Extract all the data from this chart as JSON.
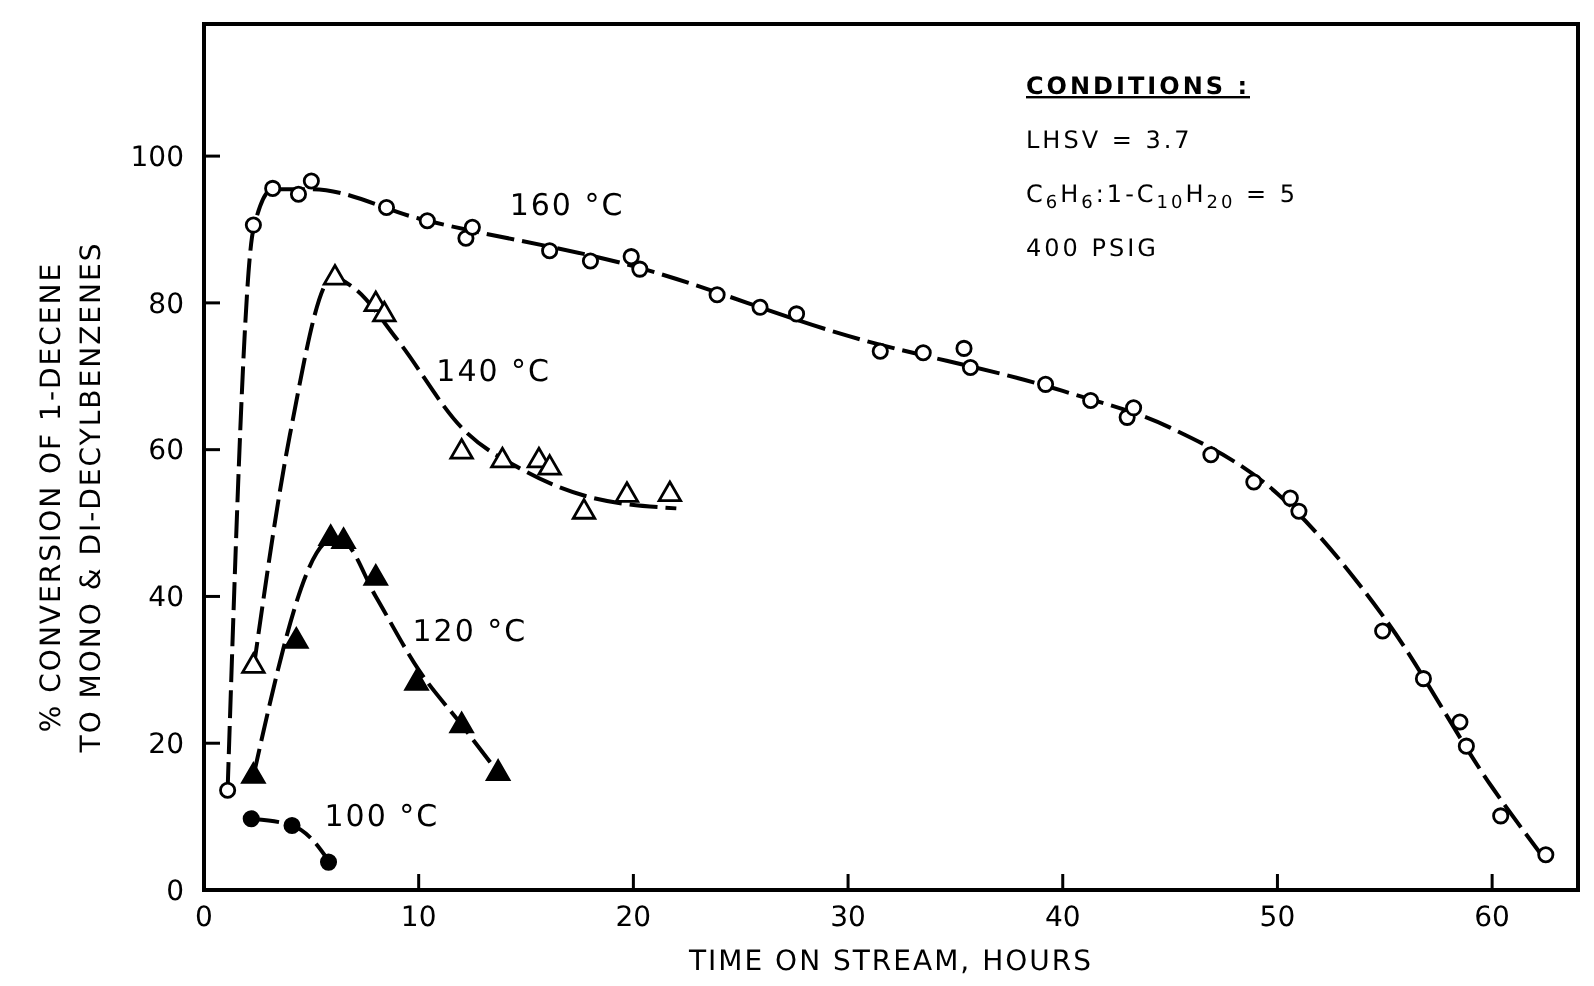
{
  "chart_data": {
    "type": "scatter",
    "xlabel": "TIME ON STREAM, HOURS",
    "ylabel": "% CONVERSION OF 1-DECENE\nTO MONO & DI-DECYLBENZENES",
    "xlim": [
      0,
      64
    ],
    "ylim": [
      0,
      118
    ],
    "xticks": [
      0,
      10,
      20,
      30,
      40,
      50,
      60
    ],
    "yticks": [
      0,
      20,
      40,
      60,
      80,
      100
    ],
    "grid": false,
    "series": [
      {
        "type": "line",
        "color": "#000000",
        "line_style": "dashed",
        "marker": "none",
        "x": [
          1.1,
          2.3,
          3.2,
          5,
          10,
          20,
          30,
          40,
          45,
          50,
          55,
          60,
          62.5
        ],
        "values": [
          13.6,
          90,
          95.5,
          95.5,
          91.5,
          85,
          75.5,
          68,
          63,
          54,
          37,
          14,
          4
        ]
      },
      {
        "type": "line",
        "color": "#000000",
        "line_style": "dashed",
        "marker": "none",
        "x": [
          2.3,
          4,
          6,
          7,
          9,
          12,
          15,
          18,
          22
        ],
        "values": [
          30,
          62,
          83.5,
          82,
          75,
          63,
          57,
          53.5,
          52
        ]
      },
      {
        "type": "line",
        "color": "#000000",
        "line_style": "dashed",
        "marker": "none",
        "x": [
          2.3,
          6,
          6.5,
          8,
          10,
          12,
          13.7
        ],
        "values": [
          15.5,
          47.8,
          47.5,
          40,
          30,
          22.5,
          16
        ]
      },
      {
        "type": "line",
        "color": "#000000",
        "line_style": "dashed",
        "marker": "none",
        "x": [
          2.2,
          4.1,
          5,
          5.8
        ],
        "values": [
          9.7,
          8.8,
          7,
          4
        ]
      },
      {
        "name": "160 °C",
        "color": "#ffffff",
        "marker": "circle",
        "x": [
          1.1,
          2.3,
          3.2,
          4.4,
          5.0,
          8.5,
          10.4,
          12.2,
          12.5,
          16.1,
          18.0,
          19.9,
          20.3,
          23.9,
          25.9,
          27.6,
          31.5,
          33.5,
          35.4,
          35.7,
          39.2,
          41.3,
          43.0,
          43.3,
          46.9,
          48.9,
          50.6,
          51.0,
          54.9,
          56.8,
          58.5,
          58.8,
          60.4,
          62.5
        ],
        "values": [
          13.6,
          90.6,
          95.6,
          94.8,
          96.6,
          93,
          91.2,
          88.8,
          90.3,
          87.1,
          85.7,
          86.3,
          84.6,
          81.1,
          79.4,
          78.5,
          73.4,
          73.2,
          73.8,
          71.2,
          68.9,
          66.7,
          64.4,
          65.7,
          59.3,
          55.6,
          53.4,
          51.6,
          35.3,
          28.8,
          22.9,
          19.6,
          10.1,
          4.8
        ]
      },
      {
        "name": "140 °C",
        "color": "#ffffff",
        "marker": "triangle",
        "x": [
          2.3,
          6.1,
          8.0,
          8.4,
          12.0,
          13.9,
          15.6,
          16.1,
          17.7,
          19.7,
          21.7
        ],
        "values": [
          30.5,
          83.4,
          79.8,
          78.4,
          59.7,
          58.5,
          58.5,
          57.5,
          51.5,
          53.8,
          53.9
        ]
      },
      {
        "name": "120 °C",
        "color": "#000000",
        "marker": "triangle",
        "x": [
          2.3,
          4.3,
          5.9,
          6.5,
          8.0,
          9.9,
          12.0,
          13.7
        ],
        "values": [
          15.5,
          33.9,
          47.9,
          47.5,
          42.5,
          28.2,
          22.4,
          15.9
        ]
      },
      {
        "name": "100 °C",
        "color": "#000000",
        "marker": "circle",
        "x": [
          2.2,
          4.1,
          5.8
        ],
        "values": [
          9.7,
          8.8,
          3.8
        ]
      }
    ],
    "annotations": [
      "CONDITIONS :",
      "LHSV = 3.7",
      "C$_{6}$H$_{6}$:1-C$_{10}$H$_{20}$ = 5",
      "400 PSIG"
    ]
  }
}
